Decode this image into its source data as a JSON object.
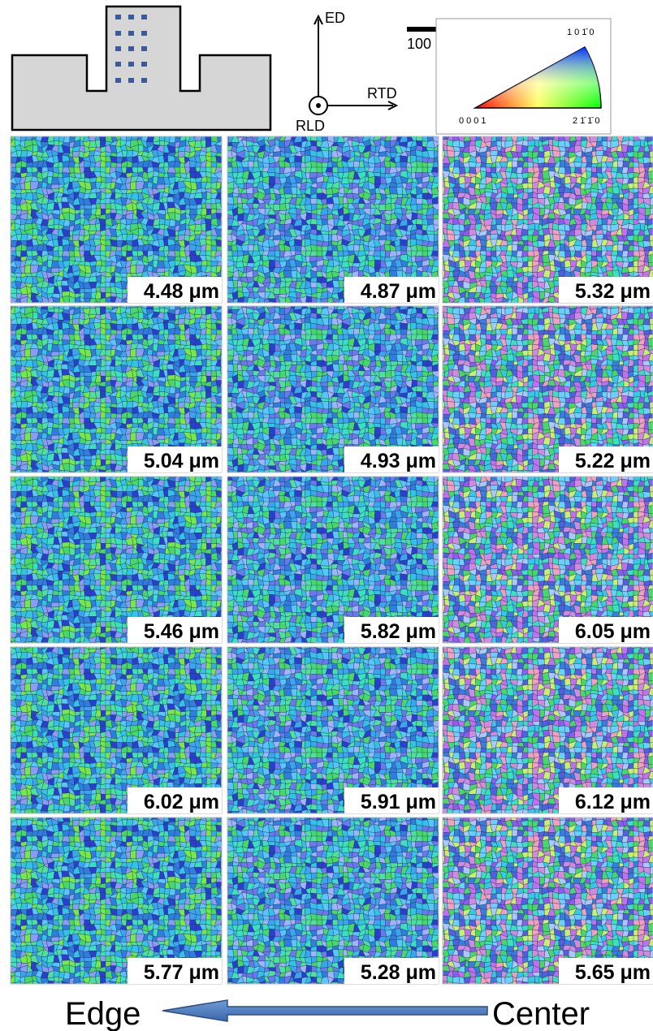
{
  "header": {
    "scale_bar": "100 μm",
    "axes": {
      "ed": "ED",
      "rtd": "RTD",
      "rld": "RLD"
    },
    "ipf": {
      "origin": "0001",
      "right": "21̄1̄0",
      "top": "101̄0"
    }
  },
  "grid": {
    "rows": [
      [
        "4.48 μm",
        "4.87 μm",
        "5.32 μm"
      ],
      [
        "5.04 μm",
        "4.93 μm",
        "5.22 μm"
      ],
      [
        "5.46 μm",
        "5.82 μm",
        "6.05 μm"
      ],
      [
        "6.02 μm",
        "5.91 μm",
        "6.12 μm"
      ],
      [
        "5.77 μm",
        "5.28 μm",
        "5.65 μm"
      ]
    ]
  },
  "footer": {
    "left": "Edge",
    "right": "Center"
  }
}
